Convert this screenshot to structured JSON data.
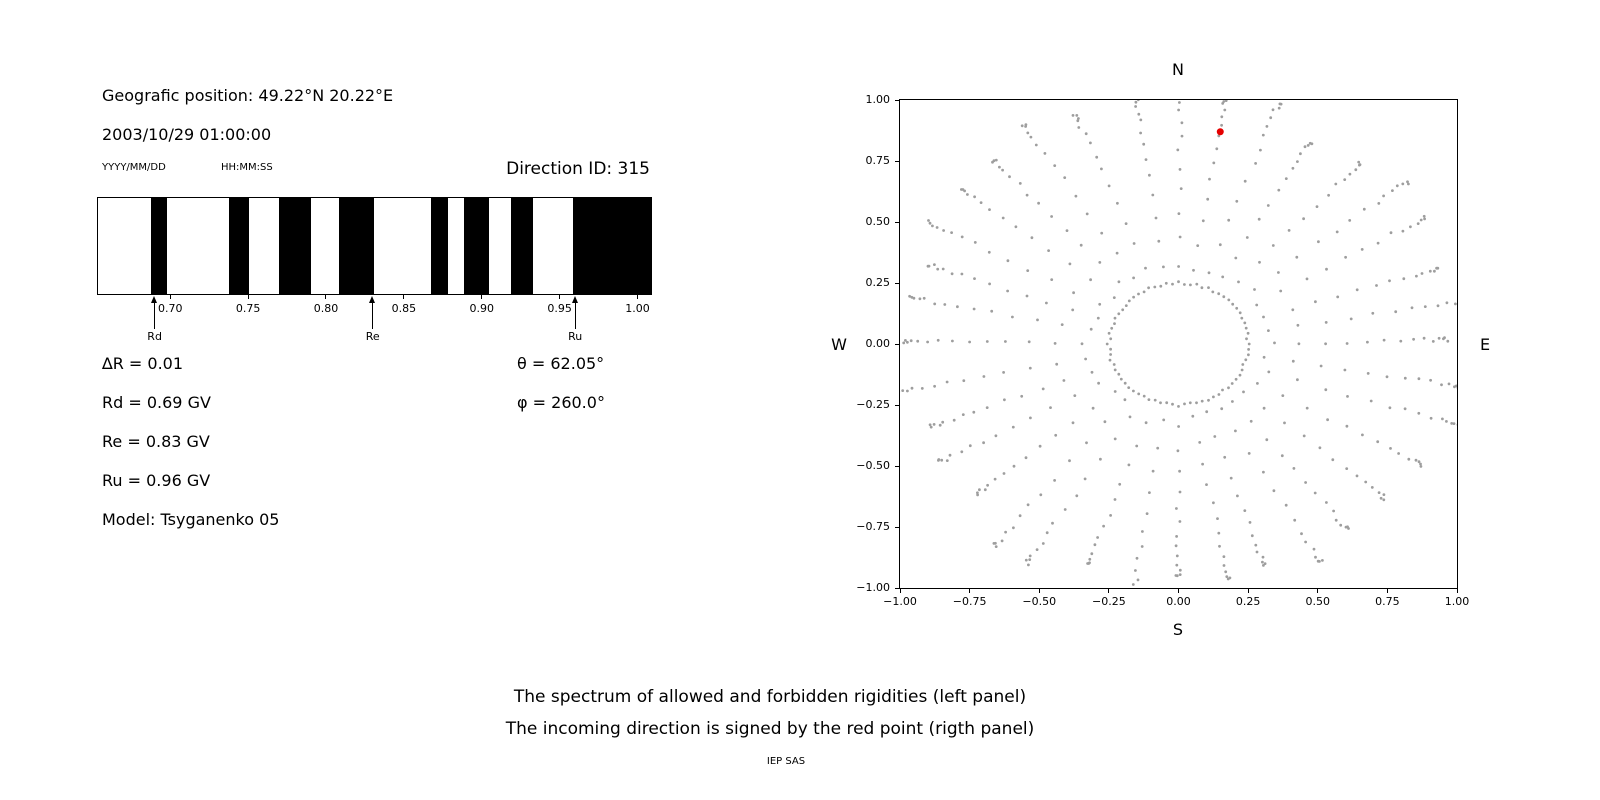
{
  "left_panel": {
    "geographic_position": "Geografic position: 49.22°N 20.22°E",
    "datetime": "2003/10/29 01:00:00",
    "date_format": "YYYY/MM/DD",
    "time_format": "HH:MM:SS",
    "direction_id": "Direction ID: 315",
    "params": [
      "∆R = 0.01",
      "Rd = 0.69 GV",
      "Re = 0.83 GV",
      "Ru = 0.96 GV",
      "Model: Tsyganenko 05"
    ],
    "theta": "θ = 62.05°",
    "phi": "φ = 260.0°"
  },
  "caption": {
    "line1": "The spectrum of allowed and forbidden rigidities (left panel)",
    "line2": "The incoming direction is signed by the red point (rigth panel)",
    "credit": "IEP SAS"
  },
  "chart_data": [
    {
      "type": "bar",
      "name": "rigidity-spectrum",
      "description": "Barcode-style spectrum: black bands = allowed rigidities, white gaps = forbidden rigidities",
      "xlim": [
        0.653,
        1.008
      ],
      "x_ticks": [
        "0.70",
        "0.75",
        "0.80",
        "0.85",
        "0.90",
        "0.95",
        "1.00"
      ],
      "x_tick_values": [
        0.7,
        0.75,
        0.8,
        0.85,
        0.9,
        0.95,
        1.0
      ],
      "band_color": "#000000",
      "allowed_bands": [
        [
          0.687,
          0.697
        ],
        [
          0.737,
          0.75
        ],
        [
          0.769,
          0.79
        ],
        [
          0.808,
          0.83
        ],
        [
          0.867,
          0.878
        ],
        [
          0.888,
          0.904
        ],
        [
          0.918,
          0.932
        ],
        [
          0.958,
          1.008
        ]
      ],
      "markers": [
        {
          "label": "Rd",
          "value": 0.69
        },
        {
          "label": "Re",
          "value": 0.83
        },
        {
          "label": "Ru",
          "value": 0.96
        }
      ]
    },
    {
      "type": "scatter",
      "name": "incoming-direction-map",
      "xlim": [
        -1.0,
        1.0
      ],
      "ylim": [
        -1.0,
        1.0
      ],
      "x_ticks": [
        "−1.00",
        "−0.75",
        "−0.50",
        "−0.25",
        "0.00",
        "0.25",
        "0.50",
        "0.75",
        "1.00"
      ],
      "x_tick_values": [
        -1.0,
        -0.75,
        -0.5,
        -0.25,
        0.0,
        0.25,
        0.5,
        0.75,
        1.0
      ],
      "y_ticks": [
        "1.00",
        "0.75",
        "0.50",
        "0.25",
        "0.00",
        "−0.25",
        "−0.50",
        "−0.75",
        "−1.00"
      ],
      "y_tick_values": [
        1.0,
        0.75,
        0.5,
        0.25,
        0.0,
        -0.25,
        -0.5,
        -0.75,
        -1.0
      ],
      "compass": {
        "top": "N",
        "bottom": "S",
        "left": "W",
        "right": "E"
      },
      "dot_color": "#9e9e9e",
      "inner_ring": {
        "radius": 0.25,
        "count": 72
      },
      "spokes": {
        "count": 36,
        "start_deg": 0,
        "step_deg": 10,
        "r_min": 0.3,
        "r_max": 1.06,
        "dots_per_spoke": 14
      },
      "red_point": {
        "x": 0.15,
        "y": 0.87,
        "color": "#e50000"
      }
    }
  ]
}
